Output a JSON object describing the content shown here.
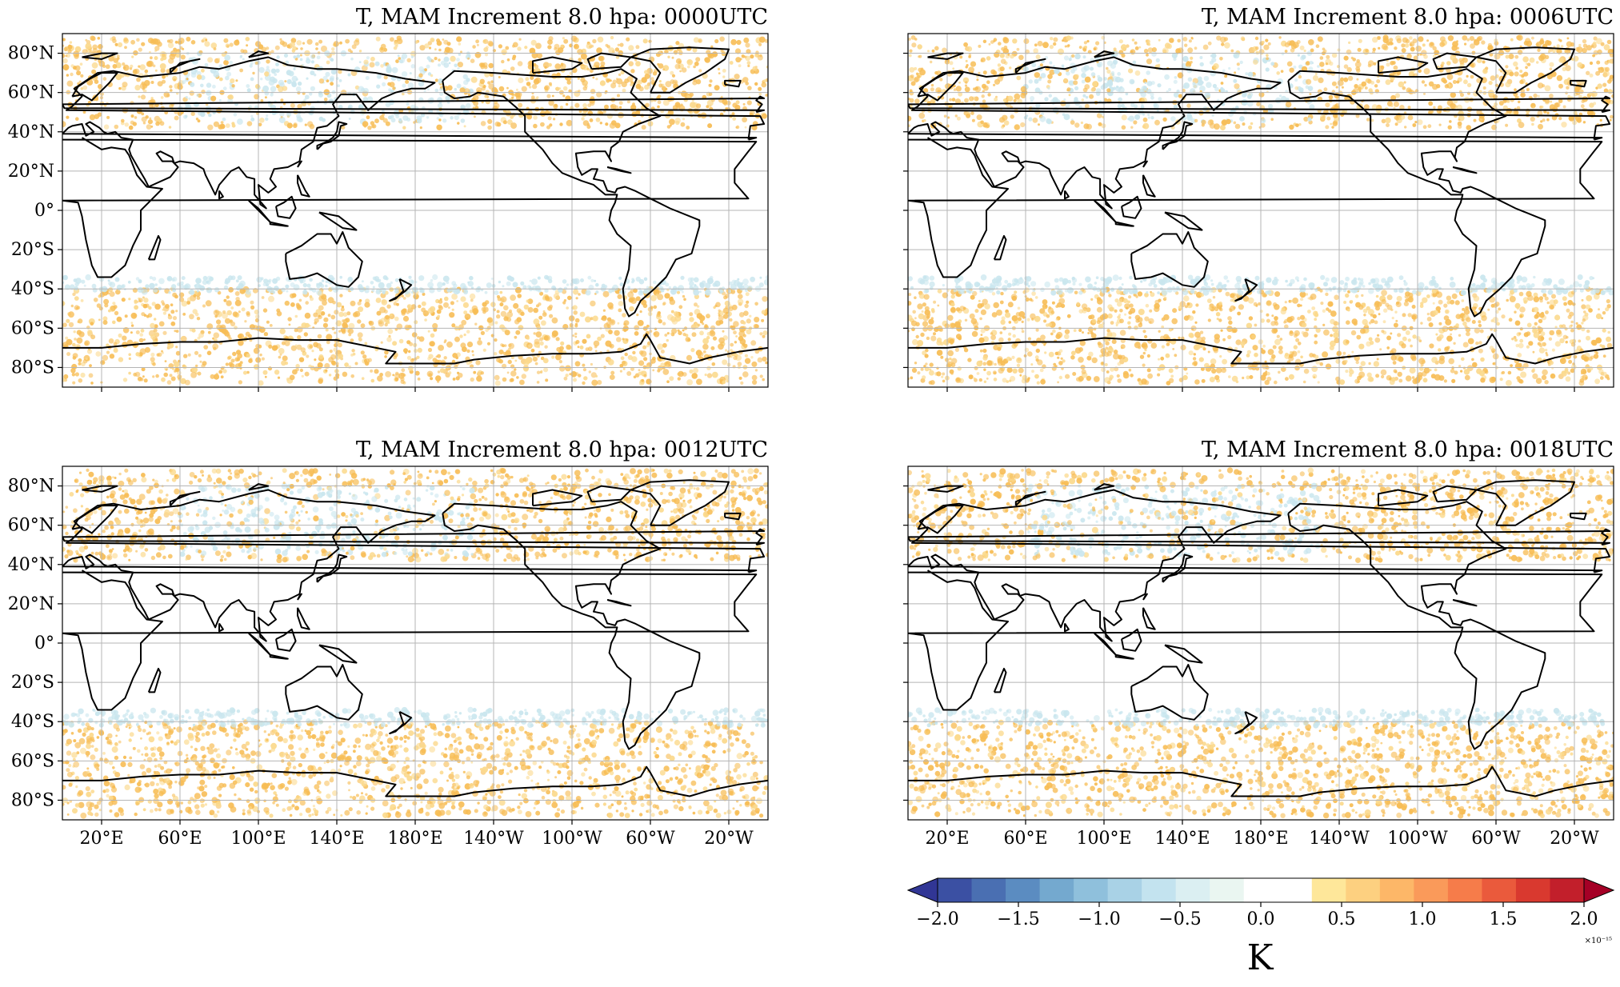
{
  "panels": [
    {
      "title": "T, MAM Increment 8.0 hpa: 0000UTC",
      "show_lon_labels": false,
      "show_lat_labels": true
    },
    {
      "title": "T, MAM Increment 8.0 hpa: 0006UTC",
      "show_lon_labels": false,
      "show_lat_labels": false
    },
    {
      "title": "T, MAM Increment 8.0 hpa: 0012UTC",
      "show_lon_labels": true,
      "show_lat_labels": true
    },
    {
      "title": "T, MAM Increment 8.0 hpa: 0018UTC",
      "show_lon_labels": true,
      "show_lat_labels": false
    }
  ],
  "lat_ticks": [
    "80°N",
    "60°N",
    "40°N",
    "20°N",
    "0°",
    "20°S",
    "40°S",
    "60°S",
    "80°S"
  ],
  "lat_values": [
    80,
    60,
    40,
    20,
    0,
    -20,
    -40,
    -60,
    -80
  ],
  "lon_ticks": [
    "20°E",
    "60°E",
    "100°E",
    "140°E",
    "180°E",
    "140°W",
    "100°W",
    "60°W",
    "20°W"
  ],
  "lon_values": [
    20,
    60,
    100,
    140,
    180,
    220,
    260,
    300,
    340
  ],
  "map_extent": {
    "lon_min": 0,
    "lon_max": 360,
    "lat_min": -90,
    "lat_max": 90
  },
  "colorbar": {
    "ticks": [
      "−2.0",
      "−1.5",
      "−1.0",
      "−0.5",
      "0.0",
      "0.5",
      "1.0",
      "1.5",
      "2.0"
    ],
    "tick_values": [
      -2.0,
      -1.5,
      -1.0,
      -0.5,
      0.0,
      0.5,
      1.0,
      1.5,
      2.0
    ],
    "range": [
      -2.0,
      2.0
    ],
    "exponent": "×10⁻¹⁵",
    "unit": "K",
    "colors": [
      "#313695",
      "#3b50a3",
      "#4a6fb2",
      "#5b8cc1",
      "#74a9cf",
      "#8fc0dc",
      "#a9d2e6",
      "#c3e3ef",
      "#dbeff2",
      "#eaf6f1",
      "#ffffff",
      "#ffffff",
      "#fee79a",
      "#fdd080",
      "#fdb768",
      "#fa9a5a",
      "#f67c4a",
      "#ea5a3c",
      "#d9392f",
      "#c21f2b",
      "#a50026"
    ],
    "extend": "both"
  },
  "anomaly_bands": [
    {
      "lat_min": 42,
      "lat_max": 88,
      "sign": "mixed",
      "color": "#f8c25a"
    },
    {
      "lat_min": -88,
      "lat_max": -40,
      "sign": "positive",
      "color": "#f8c25a"
    },
    {
      "lat_min": -42,
      "lat_max": -34,
      "sign": "negative",
      "color": "#c9e6ee"
    }
  ]
}
